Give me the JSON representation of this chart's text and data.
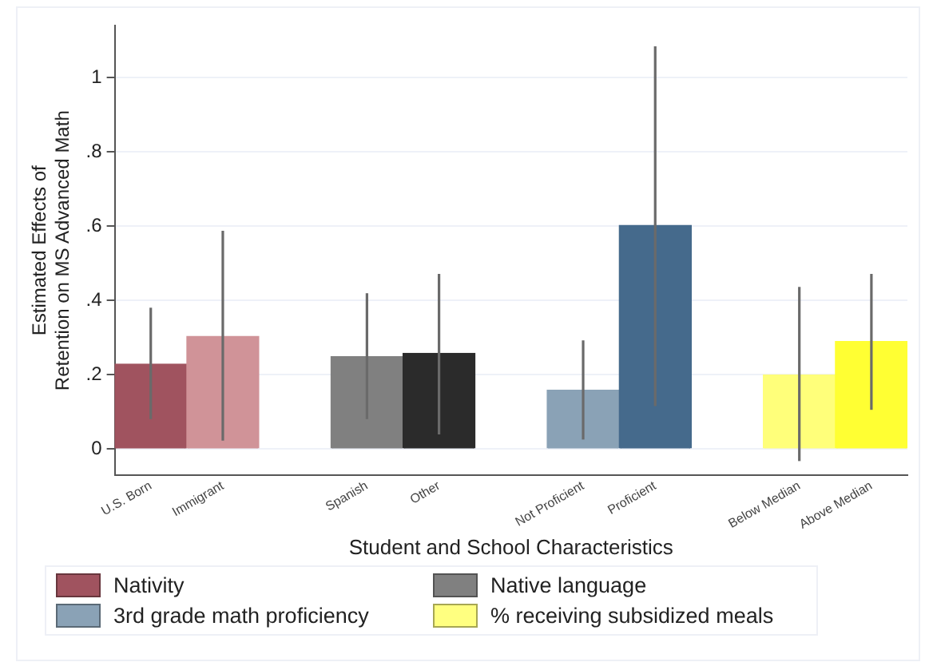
{
  "chart_data": {
    "type": "bar",
    "xlabel": "Student and School Characteristics",
    "ylabel": "Estimated Effects of Retention on MS Advanced Math",
    "categories": [
      "U.S. Born",
      "Immigrant",
      null,
      "Spanish",
      "Other",
      null,
      "Not Proficient",
      "Proficient",
      null,
      "Below Median",
      "Above Median"
    ],
    "series": [
      {
        "name": "Nativity",
        "color": "#a0535f",
        "colors": [
          "#a0535f",
          "#d09398",
          null,
          null,
          null,
          null,
          null,
          null,
          null,
          null,
          null
        ],
        "values": [
          0.229,
          0.304,
          null,
          null,
          null,
          null,
          null,
          null,
          null,
          null,
          null
        ],
        "errors": [
          [
            0.081,
            0.381
          ],
          [
            0.023,
            0.588
          ],
          null,
          null,
          null,
          null,
          null,
          null,
          null,
          null,
          null
        ]
      },
      {
        "name": "Native language",
        "color": "#808080",
        "colors": [
          null,
          null,
          null,
          "#808080",
          "#2b2b2b",
          null,
          null,
          null,
          null,
          null,
          null
        ],
        "values": [
          null,
          null,
          null,
          0.249,
          0.258,
          null,
          null,
          null,
          null,
          null,
          null
        ],
        "errors": [
          null,
          null,
          null,
          [
            0.081,
            0.42
          ],
          [
            0.04,
            0.472
          ],
          null,
          null,
          null,
          null,
          null,
          null
        ]
      },
      {
        "name": "3rd grade math proficiency",
        "color": "#8aa2b6",
        "colors": [
          null,
          null,
          null,
          null,
          null,
          null,
          "#8aa2b6",
          "#456a8c",
          null,
          null,
          null
        ],
        "values": [
          null,
          null,
          null,
          null,
          null,
          null,
          0.159,
          0.603,
          null,
          null,
          null
        ],
        "errors": [
          null,
          null,
          null,
          null,
          null,
          null,
          [
            0.026,
            0.293
          ],
          [
            0.116,
            1.085
          ],
          null,
          null,
          null
        ]
      },
      {
        "name": "% receiving subsidized meals",
        "color": "#ffff80",
        "colors": [
          null,
          null,
          null,
          null,
          null,
          null,
          null,
          null,
          null,
          "#ffff7a",
          "#ffff33"
        ],
        "values": [
          null,
          null,
          null,
          null,
          null,
          null,
          null,
          null,
          null,
          0.2,
          0.29
        ],
        "errors": [
          null,
          null,
          null,
          null,
          null,
          null,
          null,
          null,
          null,
          [
            -0.032,
            0.437
          ],
          [
            0.106,
            0.472
          ]
        ]
      }
    ],
    "ylim": [
      -0.07,
      1.14
    ],
    "yticks": [
      0,
      {
        "value": 0.2,
        "label": ".2"
      },
      {
        "value": 0.4,
        "label": ".4"
      },
      {
        "value": 0.6,
        "label": ".6"
      },
      {
        "value": 0.8,
        "label": ".8"
      },
      1
    ],
    "grid": "y",
    "legend": "bottom"
  }
}
